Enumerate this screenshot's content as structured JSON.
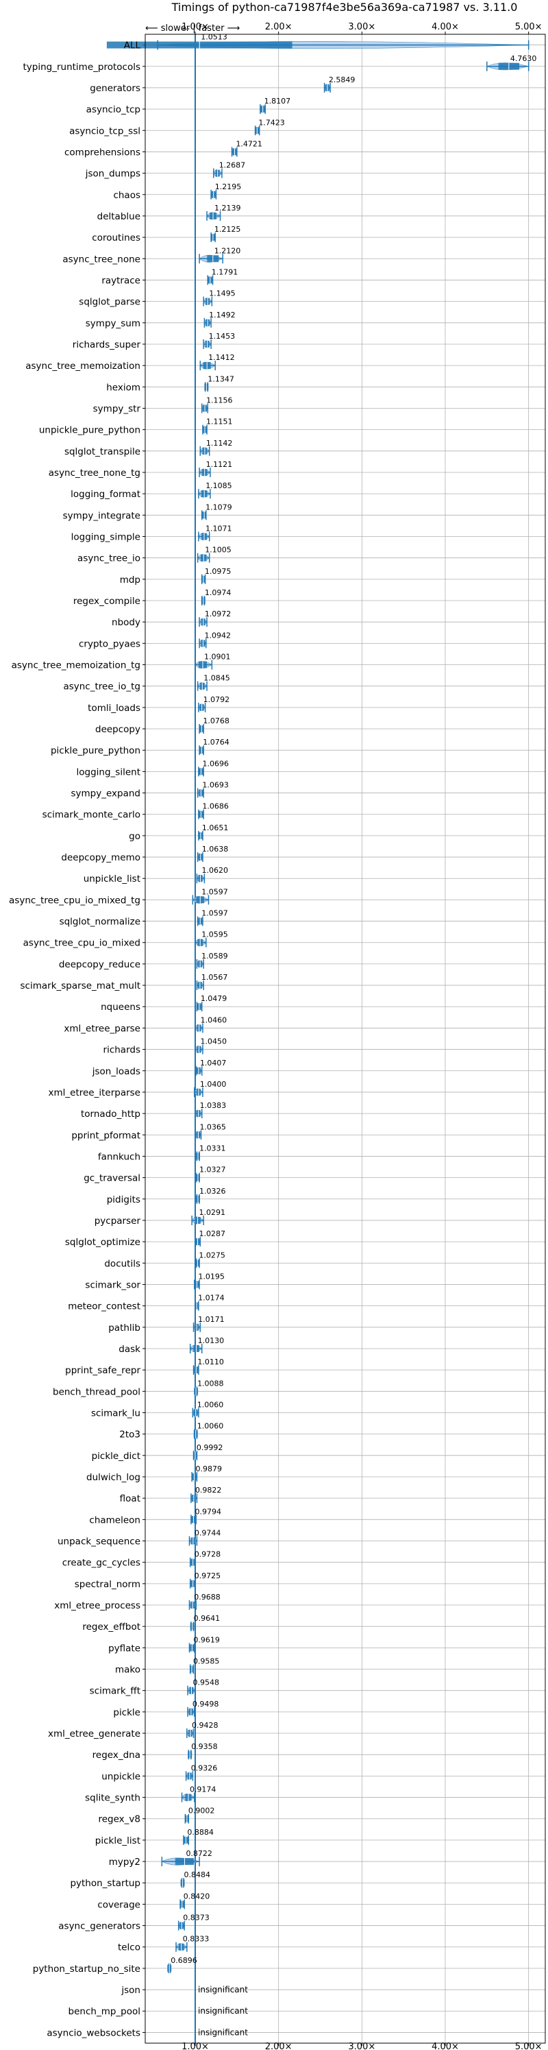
{
  "chart_data": {
    "type": "violin",
    "title": "Timings of python-ca71987f4e3be56a369a-ca71987 vs. 3.11.0",
    "direction_label": "⟵ slower | faster ⟶",
    "x_ticks": [
      {
        "value": 1,
        "label": "1.00×"
      },
      {
        "value": 2,
        "label": "2.00×"
      },
      {
        "value": 3,
        "label": "3.00×"
      },
      {
        "value": 4,
        "label": "4.00×"
      },
      {
        "value": 5,
        "label": "5.00×"
      }
    ],
    "xlim": [
      0.4,
      5.2
    ],
    "reference_line": 1.0,
    "insignificant_label": "insignificant",
    "grid": true,
    "colors": {
      "box": "#1f77b4",
      "violin": "#a6c8ea",
      "median": "#d62728",
      "grid": "#b0b0b0",
      "axis": "#000000"
    },
    "benchmarks": [
      {
        "name": "ALL",
        "value": 1.0513,
        "label": "1.0513",
        "spread": [
          0.55,
          5.0
        ]
      },
      {
        "name": "typing_runtime_protocols",
        "value": 4.763,
        "label": "4.7630",
        "spread": [
          4.5,
          5.0
        ]
      },
      {
        "name": "generators",
        "value": 2.5849,
        "label": "2.5849",
        "spread": [
          2.55,
          2.62
        ]
      },
      {
        "name": "asyncio_tcp",
        "value": 1.8107,
        "label": "1.8107",
        "spread": [
          1.78,
          1.84
        ]
      },
      {
        "name": "asyncio_tcp_ssl",
        "value": 1.7423,
        "label": "1.7423",
        "spread": [
          1.72,
          1.77
        ]
      },
      {
        "name": "comprehensions",
        "value": 1.4721,
        "label": "1.4721",
        "spread": [
          1.44,
          1.5
        ]
      },
      {
        "name": "json_dumps",
        "value": 1.2687,
        "label": "1.2687",
        "spread": [
          1.22,
          1.32
        ]
      },
      {
        "name": "chaos",
        "value": 1.2195,
        "label": "1.2195",
        "spread": [
          1.19,
          1.25
        ]
      },
      {
        "name": "deltablue",
        "value": 1.2139,
        "label": "1.2139",
        "spread": [
          1.14,
          1.3
        ]
      },
      {
        "name": "coroutines",
        "value": 1.2125,
        "label": "1.2125",
        "spread": [
          1.19,
          1.24
        ]
      },
      {
        "name": "async_tree_none",
        "value": 1.212,
        "label": "1.2120",
        "spread": [
          1.05,
          1.33
        ]
      },
      {
        "name": "raytrace",
        "value": 1.1791,
        "label": "1.1791",
        "spread": [
          1.15,
          1.21
        ]
      },
      {
        "name": "sqlglot_parse",
        "value": 1.1495,
        "label": "1.1495",
        "spread": [
          1.1,
          1.2
        ]
      },
      {
        "name": "sympy_sum",
        "value": 1.1492,
        "label": "1.1492",
        "spread": [
          1.11,
          1.19
        ]
      },
      {
        "name": "richards_super",
        "value": 1.1453,
        "label": "1.1453",
        "spread": [
          1.1,
          1.19
        ]
      },
      {
        "name": "async_tree_memoization",
        "value": 1.1412,
        "label": "1.1412",
        "spread": [
          1.06,
          1.24
        ]
      },
      {
        "name": "hexiom",
        "value": 1.1347,
        "label": "1.1347",
        "spread": [
          1.12,
          1.15
        ]
      },
      {
        "name": "sympy_str",
        "value": 1.1156,
        "label": "1.1156",
        "spread": [
          1.08,
          1.15
        ]
      },
      {
        "name": "unpickle_pure_python",
        "value": 1.1151,
        "label": "1.1151",
        "spread": [
          1.09,
          1.14
        ]
      },
      {
        "name": "sqlglot_transpile",
        "value": 1.1142,
        "label": "1.1142",
        "spread": [
          1.06,
          1.17
        ]
      },
      {
        "name": "async_tree_none_tg",
        "value": 1.1121,
        "label": "1.1121",
        "spread": [
          1.05,
          1.18
        ]
      },
      {
        "name": "logging_format",
        "value": 1.1085,
        "label": "1.1085",
        "spread": [
          1.04,
          1.18
        ]
      },
      {
        "name": "sympy_integrate",
        "value": 1.1079,
        "label": "1.1079",
        "spread": [
          1.08,
          1.13
        ]
      },
      {
        "name": "logging_simple",
        "value": 1.1071,
        "label": "1.1071",
        "spread": [
          1.04,
          1.17
        ]
      },
      {
        "name": "async_tree_io",
        "value": 1.1005,
        "label": "1.1005",
        "spread": [
          1.03,
          1.17
        ]
      },
      {
        "name": "mdp",
        "value": 1.0975,
        "label": "1.0975",
        "spread": [
          1.08,
          1.12
        ]
      },
      {
        "name": "regex_compile",
        "value": 1.0974,
        "label": "1.0974",
        "spread": [
          1.08,
          1.11
        ]
      },
      {
        "name": "nbody",
        "value": 1.0972,
        "label": "1.0972",
        "spread": [
          1.05,
          1.14
        ]
      },
      {
        "name": "crypto_pyaes",
        "value": 1.0942,
        "label": "1.0942",
        "spread": [
          1.05,
          1.13
        ]
      },
      {
        "name": "async_tree_memoization_tg",
        "value": 1.0901,
        "label": "1.0901",
        "spread": [
          1.0,
          1.2
        ]
      },
      {
        "name": "async_tree_io_tg",
        "value": 1.0845,
        "label": "1.0845",
        "spread": [
          1.03,
          1.14
        ]
      },
      {
        "name": "tomli_loads",
        "value": 1.0792,
        "label": "1.0792",
        "spread": [
          1.04,
          1.12
        ]
      },
      {
        "name": "deepcopy",
        "value": 1.0768,
        "label": "1.0768",
        "spread": [
          1.05,
          1.1
        ]
      },
      {
        "name": "pickle_pure_python",
        "value": 1.0764,
        "label": "1.0764",
        "spread": [
          1.05,
          1.1
        ]
      },
      {
        "name": "logging_silent",
        "value": 1.0696,
        "label": "1.0696",
        "spread": [
          1.04,
          1.1
        ]
      },
      {
        "name": "sympy_expand",
        "value": 1.0693,
        "label": "1.0693",
        "spread": [
          1.03,
          1.1
        ]
      },
      {
        "name": "scimark_monte_carlo",
        "value": 1.0686,
        "label": "1.0686",
        "spread": [
          1.04,
          1.1
        ]
      },
      {
        "name": "go",
        "value": 1.0651,
        "label": "1.0651",
        "spread": [
          1.04,
          1.09
        ]
      },
      {
        "name": "deepcopy_memo",
        "value": 1.0638,
        "label": "1.0638",
        "spread": [
          1.03,
          1.09
        ]
      },
      {
        "name": "unpickle_list",
        "value": 1.062,
        "label": "1.0620",
        "spread": [
          1.02,
          1.11
        ]
      },
      {
        "name": "async_tree_cpu_io_mixed_tg",
        "value": 1.0597,
        "label": "1.0597",
        "spread": [
          0.97,
          1.16
        ]
      },
      {
        "name": "sqlglot_normalize",
        "value": 1.0597,
        "label": "1.0597",
        "spread": [
          1.03,
          1.09
        ]
      },
      {
        "name": "async_tree_cpu_io_mixed",
        "value": 1.0595,
        "label": "1.0595",
        "spread": [
          1.0,
          1.13
        ]
      },
      {
        "name": "deepcopy_reduce",
        "value": 1.0589,
        "label": "1.0589",
        "spread": [
          1.02,
          1.1
        ]
      },
      {
        "name": "scimark_sparse_mat_mult",
        "value": 1.0567,
        "label": "1.0567",
        "spread": [
          1.02,
          1.1
        ]
      },
      {
        "name": "nqueens",
        "value": 1.0479,
        "label": "1.0479",
        "spread": [
          1.02,
          1.08
        ]
      },
      {
        "name": "xml_etree_parse",
        "value": 1.046,
        "label": "1.0460",
        "spread": [
          1.0,
          1.09
        ]
      },
      {
        "name": "richards",
        "value": 1.045,
        "label": "1.0450",
        "spread": [
          1.0,
          1.09
        ]
      },
      {
        "name": "json_loads",
        "value": 1.0407,
        "label": "1.0407",
        "spread": [
          1.01,
          1.08
        ]
      },
      {
        "name": "xml_etree_iterparse",
        "value": 1.04,
        "label": "1.0400",
        "spread": [
          0.99,
          1.09
        ]
      },
      {
        "name": "tornado_http",
        "value": 1.0383,
        "label": "1.0383",
        "spread": [
          1.0,
          1.08
        ]
      },
      {
        "name": "pprint_pformat",
        "value": 1.0365,
        "label": "1.0365",
        "spread": [
          1.0,
          1.07
        ]
      },
      {
        "name": "fannkuch",
        "value": 1.0331,
        "label": "1.0331",
        "spread": [
          1.02,
          1.05
        ]
      },
      {
        "name": "gc_traversal",
        "value": 1.0327,
        "label": "1.0327",
        "spread": [
          1.01,
          1.05
        ]
      },
      {
        "name": "pidigits",
        "value": 1.0326,
        "label": "1.0326",
        "spread": [
          1.02,
          1.05
        ]
      },
      {
        "name": "pycparser",
        "value": 1.0291,
        "label": "1.0291",
        "spread": [
          0.96,
          1.1
        ]
      },
      {
        "name": "sqlglot_optimize",
        "value": 1.0287,
        "label": "1.0287",
        "spread": [
          1.0,
          1.06
        ]
      },
      {
        "name": "docutils",
        "value": 1.0275,
        "label": "1.0275",
        "spread": [
          1.01,
          1.05
        ]
      },
      {
        "name": "scimark_sor",
        "value": 1.0195,
        "label": "1.0195",
        "spread": [
          0.99,
          1.05
        ]
      },
      {
        "name": "meteor_contest",
        "value": 1.0174,
        "label": "1.0174",
        "spread": [
          1.0,
          1.04
        ]
      },
      {
        "name": "pathlib",
        "value": 1.0171,
        "label": "1.0171",
        "spread": [
          0.98,
          1.06
        ]
      },
      {
        "name": "dask",
        "value": 1.013,
        "label": "1.0130",
        "spread": [
          0.94,
          1.08
        ]
      },
      {
        "name": "pprint_safe_repr",
        "value": 1.011,
        "label": "1.0110",
        "spread": [
          0.98,
          1.04
        ]
      },
      {
        "name": "bench_thread_pool",
        "value": 1.0088,
        "label": "1.0088",
        "spread": [
          1.0,
          1.02
        ]
      },
      {
        "name": "scimark_lu",
        "value": 1.006,
        "label": "1.0060",
        "spread": [
          0.97,
          1.04
        ]
      },
      {
        "name": "2to3",
        "value": 1.006,
        "label": "1.0060",
        "spread": [
          0.99,
          1.02
        ]
      },
      {
        "name": "pickle_dict",
        "value": 0.9992,
        "label": "0.9992",
        "spread": [
          0.98,
          1.02
        ]
      },
      {
        "name": "dulwich_log",
        "value": 0.9879,
        "label": "0.9879",
        "spread": [
          0.96,
          1.02
        ]
      },
      {
        "name": "float",
        "value": 0.9822,
        "label": "0.9822",
        "spread": [
          0.95,
          1.02
        ]
      },
      {
        "name": "chameleon",
        "value": 0.9794,
        "label": "0.9794",
        "spread": [
          0.95,
          1.01
        ]
      },
      {
        "name": "unpack_sequence",
        "value": 0.9744,
        "label": "0.9744",
        "spread": [
          0.93,
          1.02
        ]
      },
      {
        "name": "create_gc_cycles",
        "value": 0.9728,
        "label": "0.9728",
        "spread": [
          0.94,
          1.0
        ]
      },
      {
        "name": "spectral_norm",
        "value": 0.9725,
        "label": "0.9725",
        "spread": [
          0.94,
          1.0
        ]
      },
      {
        "name": "xml_etree_process",
        "value": 0.9688,
        "label": "0.9688",
        "spread": [
          0.93,
          1.01
        ]
      },
      {
        "name": "regex_effbot",
        "value": 0.9641,
        "label": "0.9641",
        "spread": [
          0.95,
          0.98
        ]
      },
      {
        "name": "pyflate",
        "value": 0.9619,
        "label": "0.9619",
        "spread": [
          0.93,
          0.99
        ]
      },
      {
        "name": "mako",
        "value": 0.9585,
        "label": "0.9585",
        "spread": [
          0.94,
          0.98
        ]
      },
      {
        "name": "scimark_fft",
        "value": 0.9548,
        "label": "0.9548",
        "spread": [
          0.91,
          1.0
        ]
      },
      {
        "name": "pickle",
        "value": 0.9498,
        "label": "0.9498",
        "spread": [
          0.91,
          0.99
        ]
      },
      {
        "name": "xml_etree_generate",
        "value": 0.9428,
        "label": "0.9428",
        "spread": [
          0.9,
          0.98
        ]
      },
      {
        "name": "regex_dna",
        "value": 0.9358,
        "label": "0.9358",
        "spread": [
          0.92,
          0.95
        ]
      },
      {
        "name": "unpickle",
        "value": 0.9326,
        "label": "0.9326",
        "spread": [
          0.89,
          0.97
        ]
      },
      {
        "name": "sqlite_synth",
        "value": 0.9174,
        "label": "0.9174",
        "spread": [
          0.84,
          0.99
        ]
      },
      {
        "name": "regex_v8",
        "value": 0.9002,
        "label": "0.9002",
        "spread": [
          0.88,
          0.92
        ]
      },
      {
        "name": "pickle_list",
        "value": 0.8884,
        "label": "0.8884",
        "spread": [
          0.86,
          0.92
        ]
      },
      {
        "name": "mypy2",
        "value": 0.8722,
        "label": "0.8722",
        "spread": [
          0.6,
          1.05
        ]
      },
      {
        "name": "python_startup",
        "value": 0.8484,
        "label": "0.8484",
        "spread": [
          0.84,
          0.86
        ]
      },
      {
        "name": "coverage",
        "value": 0.842,
        "label": "0.8420",
        "spread": [
          0.82,
          0.87
        ]
      },
      {
        "name": "async_generators",
        "value": 0.8373,
        "label": "0.8373",
        "spread": [
          0.8,
          0.87
        ]
      },
      {
        "name": "telco",
        "value": 0.8333,
        "label": "0.8333",
        "spread": [
          0.77,
          0.9
        ]
      },
      {
        "name": "python_startup_no_site",
        "value": 0.6896,
        "label": "0.6896",
        "spread": [
          0.68,
          0.7
        ]
      },
      {
        "name": "json",
        "value": null,
        "label": "insignificant"
      },
      {
        "name": "bench_mp_pool",
        "value": null,
        "label": "insignificant"
      },
      {
        "name": "asyncio_websockets",
        "value": null,
        "label": "insignificant"
      }
    ]
  }
}
